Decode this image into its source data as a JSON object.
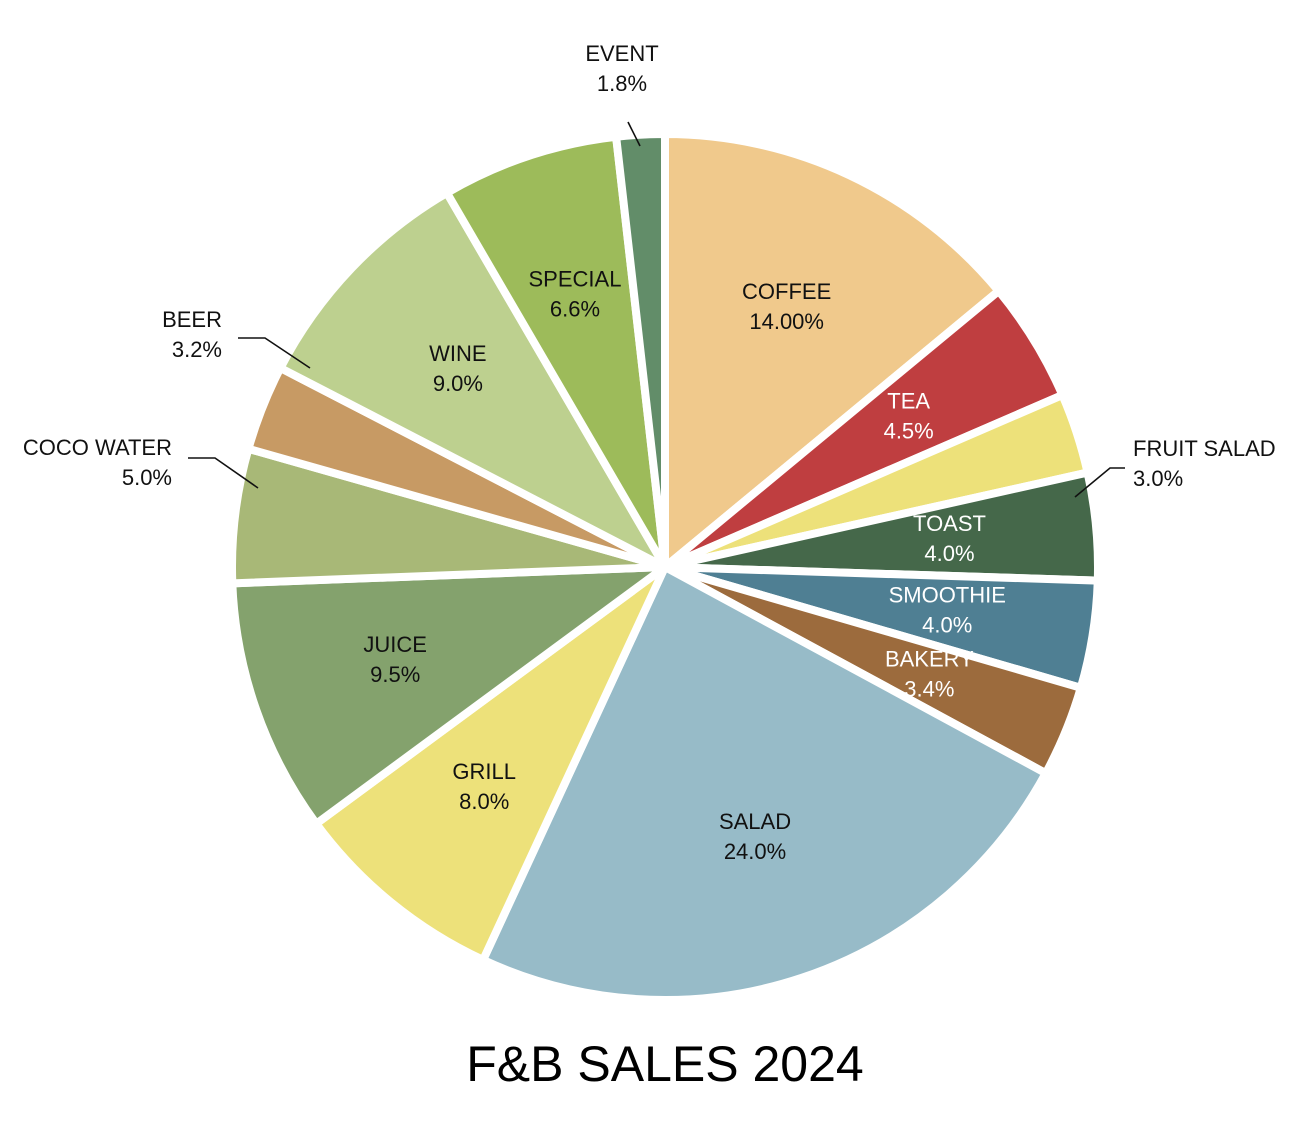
{
  "chart_data": {
    "type": "pie",
    "title": "F&B SALES 2024",
    "categories": [
      "COFFEE",
      "TEA",
      "FRUIT SALAD",
      "TOAST",
      "SMOOTHIE",
      "BAKERY",
      "SALAD",
      "GRILL",
      "JUICE",
      "COCO WATER",
      "BEER",
      "WINE",
      "SPECIAL",
      "EVENT"
    ],
    "values": [
      14.0,
      4.5,
      3.0,
      4.0,
      4.0,
      3.4,
      24.0,
      8.0,
      9.5,
      5.0,
      3.2,
      9.0,
      6.6,
      1.8
    ],
    "value_labels": [
      "14.00%",
      "4.5%",
      "3.0%",
      "4.0%",
      "4.0%",
      "3.4%",
      "24.0%",
      "8.0%",
      "9.5%",
      "5.0%",
      "3.2%",
      "9.0%",
      "6.6%",
      "1.8%"
    ],
    "colors": [
      "#f0c98c",
      "#bf3e40",
      "#ede17a",
      "#45684a",
      "#4f7f93",
      "#9c6b3d",
      "#97bbc8",
      "#ede17a",
      "#84a26d",
      "#a8b877",
      "#c79a64",
      "#bdd08f",
      "#9dbb5a",
      "#628d69"
    ]
  }
}
